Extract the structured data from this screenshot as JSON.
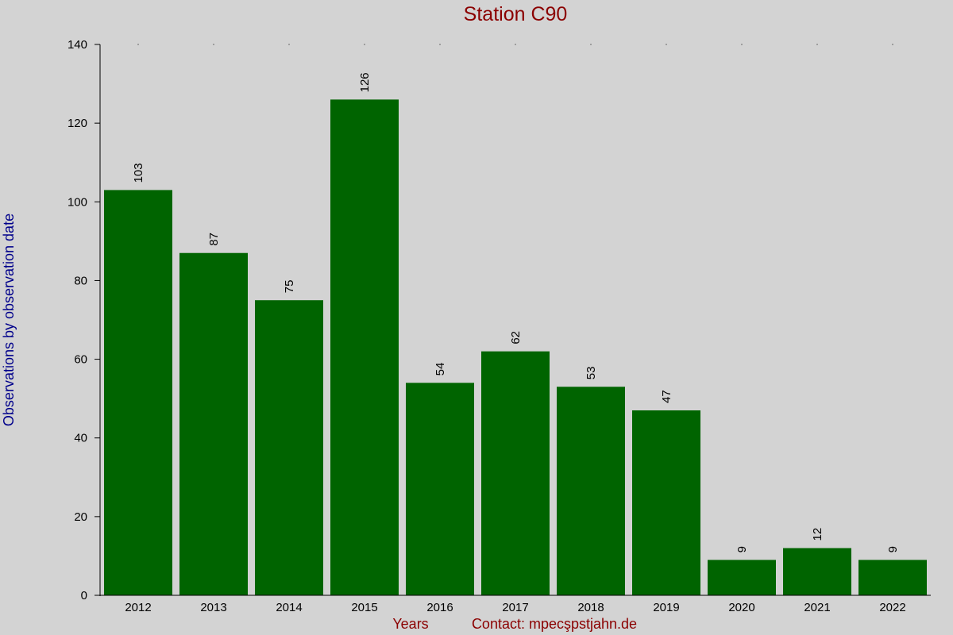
{
  "chart_data": {
    "type": "bar",
    "title": "Station C90",
    "xlabel": "Years",
    "ylabel": "Observations by observation date",
    "footer_text": "Contact: mpecşpstjahn.de",
    "categories": [
      "2012",
      "2013",
      "2014",
      "2015",
      "2016",
      "2017",
      "2018",
      "2019",
      "2020",
      "2021",
      "2022"
    ],
    "values": [
      103,
      87,
      75,
      126,
      54,
      62,
      53,
      47,
      9,
      12,
      9
    ],
    "value_labels": [
      "103",
      "87",
      "75",
      "126",
      "54",
      "62",
      "53",
      "47",
      "9",
      "12",
      "9"
    ],
    "ylim": [
      0,
      140
    ],
    "yticks": [
      0,
      20,
      40,
      60,
      80,
      100,
      120,
      140
    ],
    "ytick_labels": [
      "0",
      "20",
      "40",
      "60",
      "80",
      "100",
      "120",
      "140"
    ],
    "grid": false,
    "legend": "none"
  },
  "colors": {
    "background": "#d3d3d3",
    "bar": "#006400",
    "title": "#8b0000",
    "xlabel": "#8b0000",
    "ylabel": "#00008b",
    "axis": "#000000"
  }
}
